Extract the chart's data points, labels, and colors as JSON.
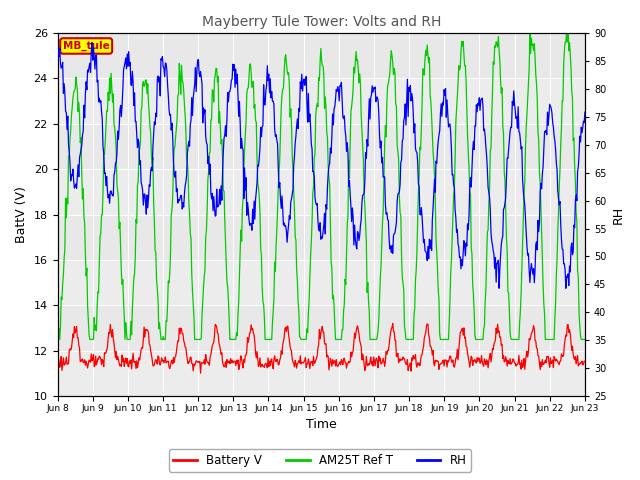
{
  "title": "Mayberry Tule Tower: Volts and RH",
  "xlabel": "Time",
  "ylabel_left": "BattV (V)",
  "ylabel_right": "RH",
  "ylim_left": [
    10,
    26
  ],
  "ylim_right": [
    25,
    90
  ],
  "xtick_labels": [
    "Jun 8",
    "Jun 9",
    "Jun 10",
    "Jun 11",
    "Jun 12",
    "Jun 13",
    "Jun 14",
    "Jun 15",
    "Jun 16",
    "Jun 17",
    "Jun 18",
    "Jun 19",
    "Jun 20",
    "Jun 21",
    "Jun 22",
    "Jun 23"
  ],
  "legend_labels": [
    "Battery V",
    "AM25T Ref T",
    "RH"
  ],
  "battery_color": "#ff0000",
  "am25t_color": "#00cc00",
  "rh_color": "#0000ff",
  "box_label": "MB_tule",
  "title_color": "#555555",
  "plot_bg_color": "#e8e8e8",
  "band_color": "#d0d0d0",
  "n_days": 15
}
